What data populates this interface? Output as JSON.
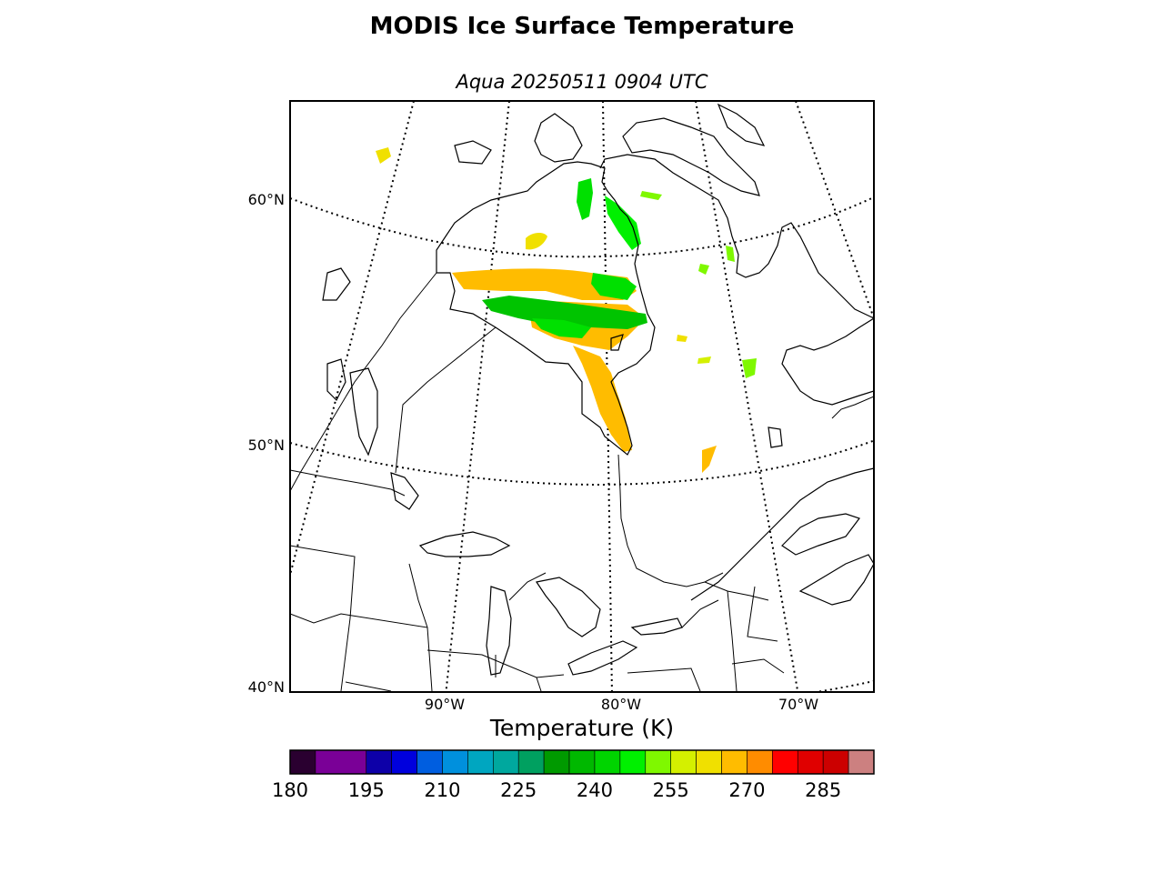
{
  "title": "MODIS Ice Surface Temperature",
  "subtitle": "Aqua 20250511 0904 UTC",
  "map": {
    "lat_labels": [
      "60°N",
      "50°N",
      "40°N"
    ],
    "lon_labels": [
      "90°W",
      "80°W",
      "70°W"
    ]
  },
  "colorbar": {
    "label": "Temperature (K)",
    "range": [
      180,
      295
    ],
    "tick_labels": [
      "180",
      "195",
      "210",
      "225",
      "240",
      "255",
      "270",
      "285"
    ],
    "bins": [
      {
        "from": 180,
        "to": 185,
        "color": "#2a0030"
      },
      {
        "from": 185,
        "to": 195,
        "color": "#7a0097"
      },
      {
        "from": 195,
        "to": 200,
        "color": "#0d00a8"
      },
      {
        "from": 200,
        "to": 205,
        "color": "#0000dd"
      },
      {
        "from": 205,
        "to": 210,
        "color": "#005ee0"
      },
      {
        "from": 210,
        "to": 215,
        "color": "#0090dd"
      },
      {
        "from": 215,
        "to": 220,
        "color": "#00a6c0"
      },
      {
        "from": 220,
        "to": 225,
        "color": "#00a89e"
      },
      {
        "from": 225,
        "to": 230,
        "color": "#00a060"
      },
      {
        "from": 230,
        "to": 235,
        "color": "#009a00"
      },
      {
        "from": 235,
        "to": 240,
        "color": "#00b800"
      },
      {
        "from": 240,
        "to": 245,
        "color": "#00d400"
      },
      {
        "from": 245,
        "to": 250,
        "color": "#00f000"
      },
      {
        "from": 250,
        "to": 255,
        "color": "#7ff800"
      },
      {
        "from": 255,
        "to": 260,
        "color": "#d4f000"
      },
      {
        "from": 260,
        "to": 265,
        "color": "#f0e000"
      },
      {
        "from": 265,
        "to": 270,
        "color": "#ffbc00"
      },
      {
        "from": 270,
        "to": 275,
        "color": "#ff8c00"
      },
      {
        "from": 275,
        "to": 280,
        "color": "#ff0000"
      },
      {
        "from": 280,
        "to": 285,
        "color": "#e00000"
      },
      {
        "from": 285,
        "to": 290,
        "color": "#cc0000"
      },
      {
        "from": 290,
        "to": 295,
        "color": "#cc8080"
      }
    ]
  }
}
